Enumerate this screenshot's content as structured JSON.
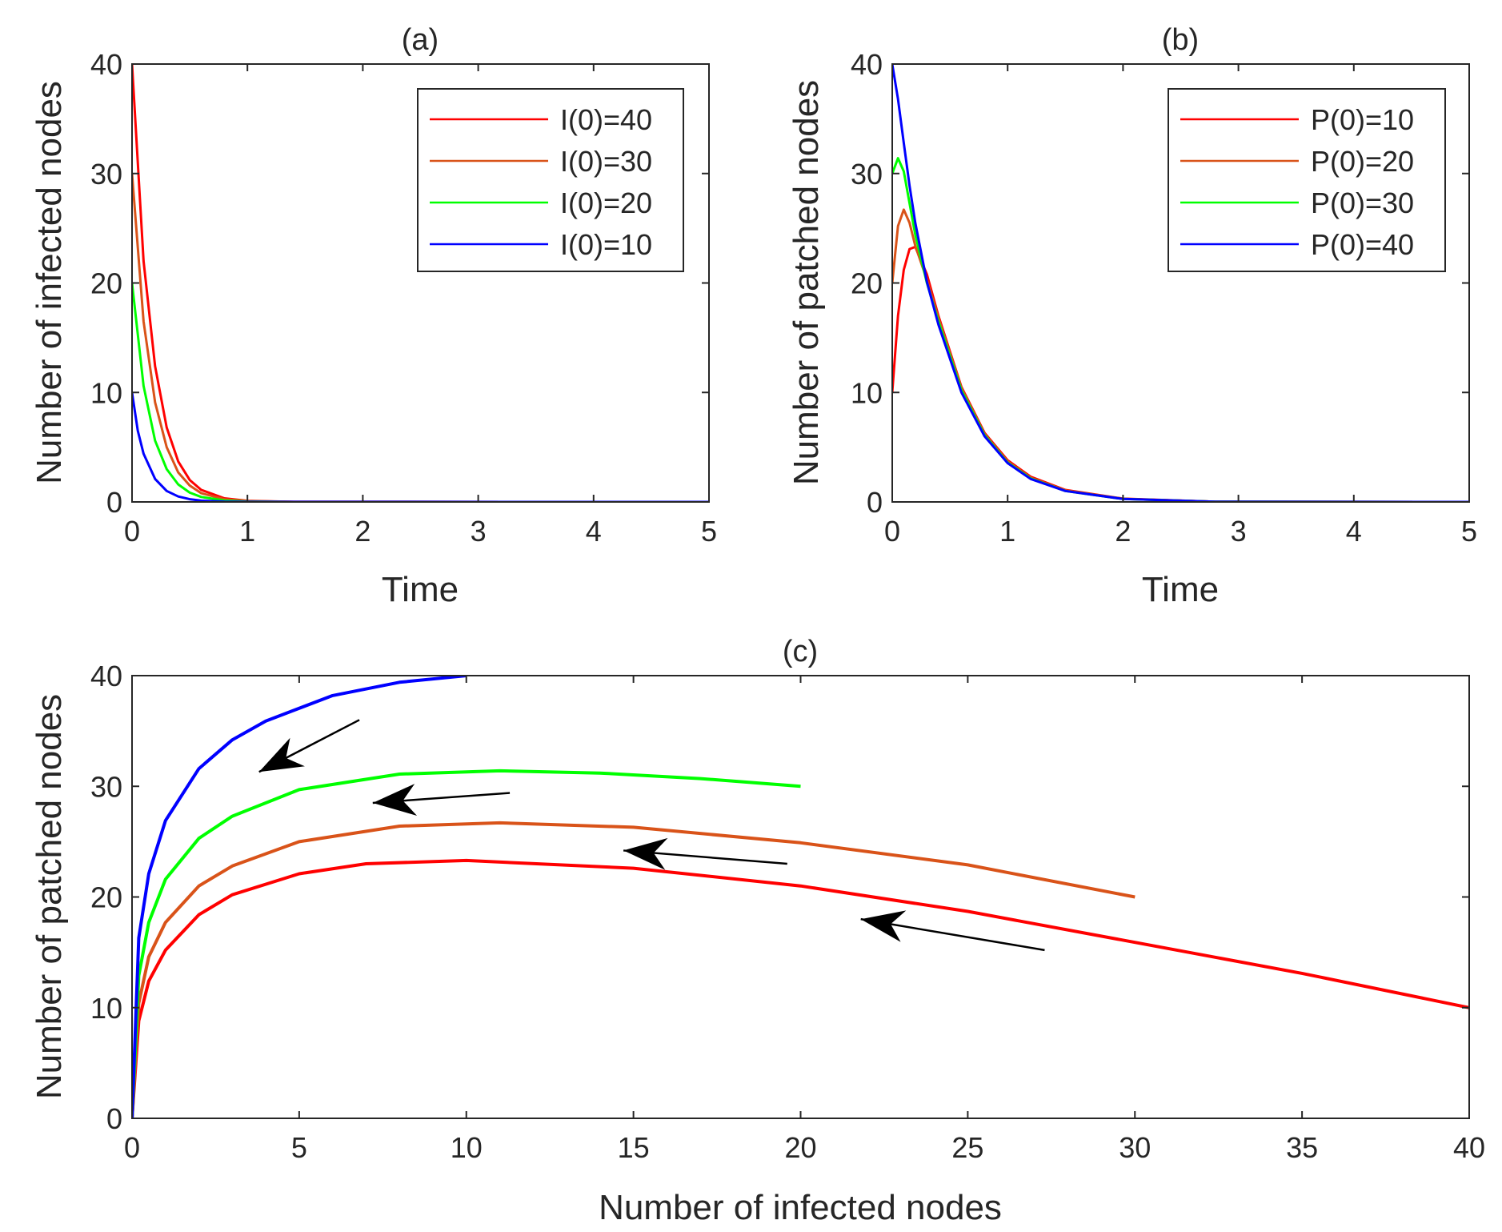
{
  "chart_data": [
    {
      "id": "a",
      "type": "line",
      "title": "(a)",
      "xlabel": "Time",
      "ylabel": "Number of infected nodes",
      "xlim": [
        0,
        5
      ],
      "ylim": [
        0,
        40
      ],
      "xticks": [
        "0",
        "1",
        "2",
        "3",
        "4",
        "5"
      ],
      "yticks": [
        "0",
        "10",
        "20",
        "30",
        "40"
      ],
      "legend_position": "top-right",
      "series": [
        {
          "name": "I(0)=40",
          "color": "#ff0000",
          "x": [
            0,
            0.1,
            0.2,
            0.3,
            0.4,
            0.5,
            0.6,
            0.8,
            1.0,
            1.4,
            5
          ],
          "y": [
            40,
            22,
            12.4,
            6.8,
            3.7,
            2.0,
            1.1,
            0.33,
            0.1,
            0.01,
            0
          ]
        },
        {
          "name": "I(0)=30",
          "color": "#d95319",
          "x": [
            0,
            0.1,
            0.2,
            0.3,
            0.4,
            0.5,
            0.6,
            0.8,
            1.0,
            1.4,
            5
          ],
          "y": [
            30,
            16.5,
            9.1,
            5.0,
            2.7,
            1.5,
            0.8,
            0.24,
            0.07,
            0.01,
            0
          ]
        },
        {
          "name": "I(0)=20",
          "color": "#00ff00",
          "x": [
            0,
            0.1,
            0.2,
            0.3,
            0.4,
            0.5,
            0.6,
            0.8,
            1.0,
            1.4,
            5
          ],
          "y": [
            20,
            10.6,
            5.6,
            3.0,
            1.6,
            0.85,
            0.45,
            0.13,
            0.04,
            0,
            0
          ]
        },
        {
          "name": "I(0)=10",
          "color": "#0000ff",
          "x": [
            0,
            0.05,
            0.1,
            0.2,
            0.3,
            0.4,
            0.5,
            0.6,
            0.8,
            1.0,
            5
          ],
          "y": [
            10,
            6.5,
            4.4,
            2.1,
            1.0,
            0.5,
            0.25,
            0.12,
            0.03,
            0.01,
            0
          ]
        }
      ]
    },
    {
      "id": "b",
      "type": "line",
      "title": "(b)",
      "xlabel": "Time",
      "ylabel": "Number of patched nodes",
      "xlim": [
        0,
        5
      ],
      "ylim": [
        0,
        40
      ],
      "xticks": [
        "0",
        "1",
        "2",
        "3",
        "4",
        "5"
      ],
      "yticks": [
        "0",
        "10",
        "20",
        "30",
        "40"
      ],
      "legend_position": "top-right",
      "series": [
        {
          "name": "P(0)=10",
          "color": "#ff0000",
          "x": [
            0,
            0.05,
            0.1,
            0.15,
            0.2,
            0.3,
            0.4,
            0.6,
            0.8,
            1.0,
            1.2,
            1.5,
            2.0,
            2.8,
            5
          ],
          "y": [
            10,
            17,
            21.2,
            23.1,
            23.3,
            20.8,
            17.0,
            10.5,
            6.3,
            3.8,
            2.3,
            1.1,
            0.3,
            0.02,
            0
          ]
        },
        {
          "name": "P(0)=20",
          "color": "#d95319",
          "x": [
            0,
            0.05,
            0.1,
            0.15,
            0.2,
            0.3,
            0.4,
            0.6,
            0.8,
            1.0,
            1.2,
            1.5,
            2.0,
            2.8,
            5
          ],
          "y": [
            20,
            25.2,
            26.7,
            25.5,
            23.4,
            20.3,
            16.8,
            10.4,
            6.2,
            3.7,
            2.2,
            1.05,
            0.28,
            0.02,
            0
          ]
        },
        {
          "name": "P(0)=30",
          "color": "#00ff00",
          "x": [
            0,
            0.05,
            0.1,
            0.15,
            0.2,
            0.3,
            0.4,
            0.6,
            0.8,
            1.0,
            1.2,
            1.5,
            2.0,
            2.8,
            5
          ],
          "y": [
            30,
            31.4,
            30.2,
            27.3,
            24.4,
            20.0,
            16.5,
            10.2,
            6.1,
            3.6,
            2.15,
            1.0,
            0.27,
            0.02,
            0
          ]
        },
        {
          "name": "P(0)=40",
          "color": "#0000ff",
          "x": [
            0,
            0.05,
            0.1,
            0.15,
            0.2,
            0.3,
            0.4,
            0.6,
            0.8,
            1.0,
            1.2,
            1.5,
            2.0,
            2.8,
            5
          ],
          "y": [
            40,
            36.8,
            32.8,
            28.9,
            25.5,
            20.1,
            16.2,
            10.0,
            6.0,
            3.55,
            2.1,
            1.0,
            0.27,
            0.02,
            0
          ]
        }
      ]
    },
    {
      "id": "c",
      "type": "line",
      "title": "(c)",
      "xlabel": "Number of infected nodes",
      "ylabel": "Number of patched nodes",
      "xlim": [
        0,
        40
      ],
      "ylim": [
        0,
        40
      ],
      "xticks": [
        "0",
        "5",
        "10",
        "15",
        "20",
        "25",
        "30",
        "35",
        "40"
      ],
      "yticks": [
        "0",
        "10",
        "20",
        "30",
        "40"
      ],
      "series": [
        {
          "name": "I(0)=40, P(0)=10",
          "color": "#ff0000",
          "x": [
            40,
            35,
            30,
            25,
            20,
            15,
            10,
            7,
            5,
            3,
            2,
            1,
            0.5,
            0.2,
            0
          ],
          "y": [
            10,
            13.1,
            15.9,
            18.7,
            21.0,
            22.6,
            23.3,
            23.0,
            22.1,
            20.2,
            18.4,
            15.2,
            12.4,
            8.8,
            0
          ]
        },
        {
          "name": "I(0)=30, P(0)=20",
          "color": "#d95319",
          "x": [
            30,
            25,
            20,
            15,
            11,
            8,
            5,
            3,
            2,
            1,
            0.5,
            0.2,
            0
          ],
          "y": [
            20,
            22.9,
            24.9,
            26.3,
            26.7,
            26.4,
            25.0,
            22.8,
            21.0,
            17.7,
            14.6,
            10.4,
            0
          ]
        },
        {
          "name": "I(0)=20, P(0)=30",
          "color": "#00ff00",
          "x": [
            20,
            17,
            14,
            11,
            8,
            5,
            3,
            2,
            1,
            0.5,
            0.2,
            0
          ],
          "y": [
            30,
            30.7,
            31.2,
            31.4,
            31.1,
            29.7,
            27.3,
            25.3,
            21.6,
            17.7,
            12.9,
            0
          ]
        },
        {
          "name": "I(0)=10, P(0)=40",
          "color": "#0000ff",
          "x": [
            10,
            8,
            6,
            4,
            3,
            2,
            1,
            0.5,
            0.2,
            0
          ],
          "y": [
            40,
            39.4,
            38.2,
            35.9,
            34.2,
            31.6,
            26.9,
            22.1,
            16.3,
            0
          ]
        }
      ],
      "arrows": [
        {
          "from": [
            6.8,
            36.0
          ],
          "to": [
            3.8,
            31.3
          ]
        },
        {
          "from": [
            11.3,
            29.4
          ],
          "to": [
            7.2,
            28.5
          ]
        },
        {
          "from": [
            19.6,
            23.0
          ],
          "to": [
            14.7,
            24.2
          ]
        },
        {
          "from": [
            27.3,
            15.2
          ],
          "to": [
            21.8,
            18.0
          ]
        }
      ]
    }
  ]
}
